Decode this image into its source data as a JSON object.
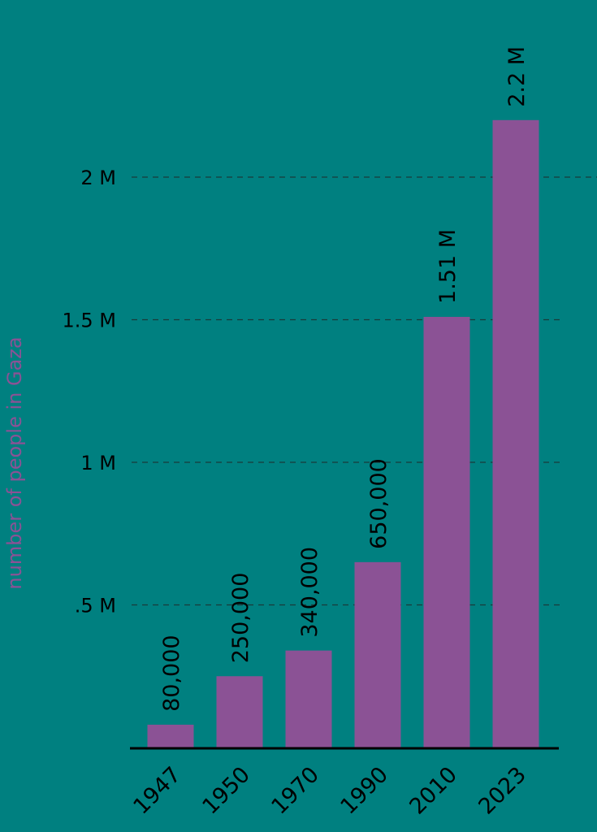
{
  "colors": {
    "background": "#008080",
    "bar": "#8B5295",
    "text": "#000000",
    "grid": "#1a3a3a",
    "ylabel": "#8B5295"
  },
  "chart_data": {
    "type": "bar",
    "categories": [
      "1947",
      "1950",
      "1970",
      "1990",
      "2010",
      "2023"
    ],
    "values": [
      80000,
      250000,
      340000,
      650000,
      1510000,
      2200000
    ],
    "value_labels": [
      "80,000",
      "250,000",
      "340,000",
      "650,000",
      "1.51 M",
      "2.2 M"
    ],
    "ylabel": "number of people in Gaza",
    "xlabel": "",
    "ylim": [
      0,
      2200000
    ],
    "yticks": [
      500000,
      1000000,
      1500000,
      2000000
    ],
    "ytick_labels": [
      ".5 M",
      "1 M",
      "1.5 M",
      "2 M"
    ],
    "grid": "horizontal dashed",
    "legend": "none"
  }
}
